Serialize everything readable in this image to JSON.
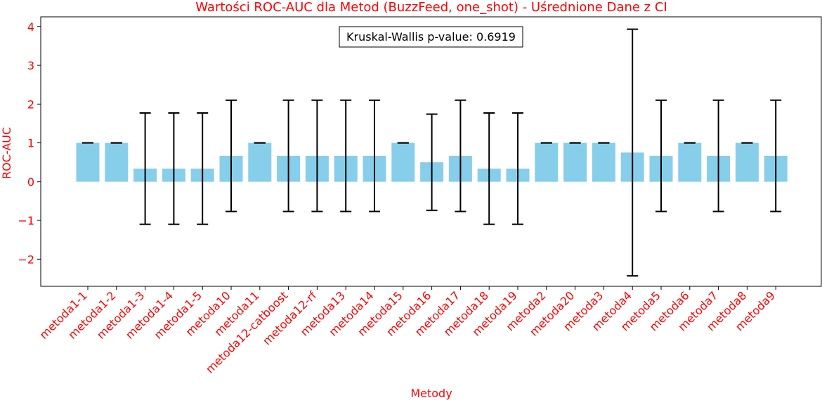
{
  "chart_data": {
    "type": "bar",
    "title": "Wartości ROC-AUC dla Metod (BuzzFeed, one_shot) - Uśrednione Dane z CI",
    "xlabel": "Metody",
    "ylabel": "ROC-AUC",
    "ylim": [
      -2.7,
      4.25
    ],
    "yticks": [
      -2,
      -1,
      0,
      1,
      2,
      3,
      4
    ],
    "ytick_labels": [
      "−2",
      "−1",
      "0",
      "1",
      "2",
      "3",
      "4"
    ],
    "grid": false,
    "annotation": "Kruskal-Wallis p-value: 0.6919",
    "categories": [
      "metoda1-1",
      "metoda1-2",
      "metoda1-3",
      "metoda1-4",
      "metoda1-5",
      "metoda10",
      "metoda11",
      "metoda12-catboost",
      "metoda12-rf",
      "metoda13",
      "metoda14",
      "metoda15",
      "metoda16",
      "metoda17",
      "metoda18",
      "metoda19",
      "metoda2",
      "metoda20",
      "metoda3",
      "metoda4",
      "metoda5",
      "metoda6",
      "metoda7",
      "metoda8",
      "metoda9"
    ],
    "values": [
      1.0,
      1.0,
      0.333,
      0.333,
      0.333,
      0.667,
      1.0,
      0.667,
      0.667,
      0.667,
      0.667,
      1.0,
      0.5,
      0.667,
      0.333,
      0.333,
      1.0,
      1.0,
      1.0,
      0.75,
      0.667,
      1.0,
      0.667,
      1.0,
      0.667
    ],
    "ci_lower": [
      1.0,
      1.0,
      -1.1,
      -1.1,
      -1.1,
      -0.77,
      1.0,
      -0.77,
      -0.77,
      -0.77,
      -0.77,
      1.0,
      -0.74,
      -0.77,
      -1.1,
      -1.1,
      1.0,
      1.0,
      1.0,
      -2.43,
      -0.77,
      1.0,
      -0.77,
      1.0,
      -0.77
    ],
    "ci_upper": [
      1.0,
      1.0,
      1.77,
      1.77,
      1.77,
      2.1,
      1.0,
      2.1,
      2.1,
      2.1,
      2.1,
      1.0,
      1.74,
      2.1,
      1.77,
      1.77,
      1.0,
      1.0,
      1.0,
      3.93,
      2.1,
      1.0,
      2.1,
      1.0,
      2.1
    ],
    "colors": {
      "bar": "#87ceeb",
      "errorbar": "#000000",
      "text_accent": "#ff0000",
      "axis": "#000000"
    }
  }
}
